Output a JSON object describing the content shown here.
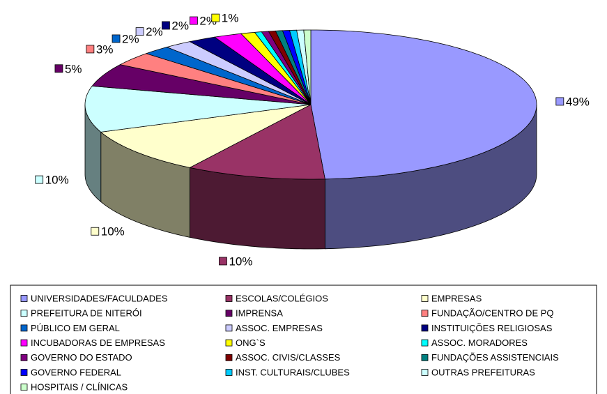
{
  "chart_data": {
    "type": "pie3d",
    "categories": [
      "UNIVERSIDADES/FACULDADES",
      "ESCOLAS/COLÉGIOS",
      "EMPRESAS",
      "PREFEITURA DE NITERÓI",
      "IMPRENSA",
      "FUNDAÇÃO/CENTRO DE PQ",
      "PÚBLICO EM GERAL",
      "ASSOC. EMPRESAS",
      "INSTITUIÇÕES RELIGIOSAS",
      "INCUBADORAS DE EMPRESAS",
      "ONG`S",
      "ASSOC. MORADORES",
      "GOVERNO DO ESTADO",
      "ASSOC. CIVIS/CLASSES",
      "FUNDAÇÕES ASSISTENCIAIS",
      "GOVERNO FEDERAL",
      "INST. CULTURAIS/CLUBES",
      "OUTRAS PREFEITURAS",
      "HOSPITAIS / CLÍNICAS"
    ],
    "values": [
      49,
      10,
      10,
      10,
      5,
      3,
      2,
      2,
      2,
      2,
      1,
      0.5,
      0.5,
      0.5,
      0.5,
      0.5,
      0.5,
      0.5,
      0.5
    ],
    "value_labels": [
      "49%",
      "10%",
      "10%",
      "10%",
      "5%",
      "3%",
      "2%",
      "2%",
      "2%",
      "2%",
      "1%",
      null,
      null,
      null,
      null,
      null,
      null,
      null,
      null
    ],
    "colors": [
      "#9999FF",
      "#993366",
      "#FFFFCC",
      "#CCFFFF",
      "#660066",
      "#FF8080",
      "#0066CC",
      "#CCCCFF",
      "#000080",
      "#FF00FF",
      "#FFFF00",
      "#00FFFF",
      "#800080",
      "#800000",
      "#008080",
      "#0000FF",
      "#00CCFF",
      "#CCFFFF",
      "#CCFFCC"
    ],
    "legend": "bottom"
  }
}
